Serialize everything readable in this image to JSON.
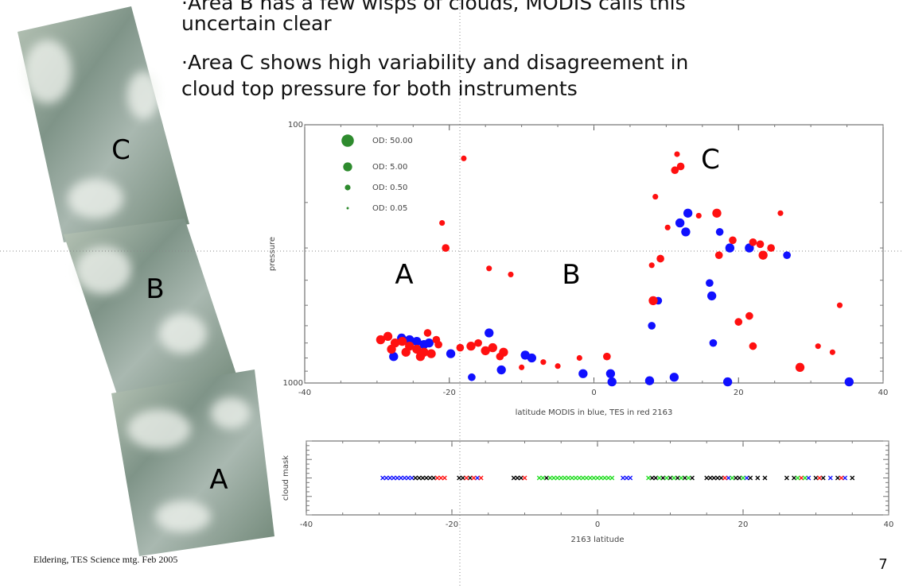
{
  "slide": {
    "bullets": [
      [
        "·Area B has a few wisps of clouds, MODIS calls this",
        "uncertain clear"
      ],
      [
        "·Area C shows high variability and disagreement in",
        "cloud top pressure for both instruments"
      ]
    ],
    "image_labels": [
      "C",
      "B",
      "A"
    ],
    "footer": "Eldering, TES Science mtg. Feb 2005",
    "page_number": "7"
  },
  "chart_data": [
    {
      "type": "scatter",
      "x_label": "latitude MODIS in blue, TES in red 2163",
      "y_label": "pressure",
      "xlim": [
        -40,
        40
      ],
      "xticks": [
        -40,
        -20,
        0,
        20,
        40
      ],
      "ylim": [
        1000,
        100
      ],
      "yticks": [
        100,
        1000
      ],
      "yscale": "log",
      "annotations": [
        "A",
        "B",
        "C"
      ],
      "legend": {
        "color": "#2e8b2e",
        "entries": [
          {
            "label": "OD:    50.00",
            "size": 50
          },
          {
            "label": "OD:    5.00",
            "size": 5
          },
          {
            "label": "OD:    0.50",
            "size": 0.5
          },
          {
            "label": "OD:    0.05",
            "size": 0.05
          }
        ]
      },
      "series": [
        {
          "color": "#1010ff",
          "x": [
            -26.6,
            -27.7,
            -22.8,
            -19.8,
            -14.5,
            -12.8,
            -9.5,
            -8.6,
            -16.9,
            -1.5,
            2.3,
            2.5,
            8.0,
            7.7,
            11.1,
            11.9,
            13.0,
            12.7,
            17.4,
            18.8,
            21.5,
            26.7,
            16.0,
            16.3,
            16.5,
            18.5,
            35.3,
            8.9,
            -24.5,
            -25.5,
            -23.5
          ],
          "values": [
            670,
            790,
            700,
            770,
            640,
            890,
            780,
            800,
            950,
            920,
            920,
            990,
            600,
            980,
            950,
            240,
            220,
            260,
            260,
            300,
            300,
            320,
            410,
            460,
            700,
            990,
            990,
            480,
            690,
            680,
            710
          ],
          "sizes": [
            5,
            5,
            5,
            5,
            5,
            5,
            5,
            5,
            2,
            5,
            5,
            5,
            2,
            5,
            5,
            5,
            5,
            5,
            2,
            5,
            5,
            2,
            2,
            5,
            2,
            5,
            5,
            2,
            5,
            5,
            5
          ]
        },
        {
          "color": "#ff1010",
          "x": [
            -28.5,
            -27.5,
            -26.5,
            -25.5,
            -24.5,
            -23.5,
            -28,
            -26,
            -24,
            -29.5,
            -22.5,
            -21.5,
            -21.8,
            -23,
            -17,
            -16,
            -14,
            -12.5,
            -15,
            -13,
            -18.5,
            -20.5,
            -10,
            -7,
            -2,
            1.8,
            -5,
            8.2,
            9.2,
            8,
            11.5,
            12,
            11.2,
            10.2,
            14.5,
            17,
            19.2,
            17.3,
            22,
            23,
            23.4,
            25.8,
            20,
            21.5,
            22,
            28.5,
            33,
            31,
            34,
            -18,
            -21,
            -14.5,
            -11.5,
            8.5,
            24.5
          ],
          "values": [
            660,
            700,
            690,
            720,
            740,
            760,
            740,
            760,
            790,
            680,
            770,
            710,
            680,
            640,
            720,
            700,
            730,
            760,
            750,
            790,
            730,
            300,
            870,
            830,
            800,
            790,
            860,
            480,
            330,
            350,
            130,
            145,
            150,
            250,
            225,
            220,
            280,
            320,
            285,
            290,
            320,
            220,
            580,
            550,
            720,
            870,
            760,
            720,
            500,
            135,
            240,
            360,
            380,
            190,
            300
          ],
          "sizes": [
            5,
            5,
            5,
            5,
            5,
            5,
            5,
            5,
            5,
            5,
            5,
            2,
            2,
            2,
            5,
            2,
            5,
            5,
            5,
            2,
            2,
            2,
            0.5,
            0.5,
            0.5,
            2,
            0.5,
            5,
            2,
            0.5,
            0.5,
            2,
            2,
            0.5,
            0.5,
            5,
            2,
            2,
            2,
            2,
            5,
            0.5,
            2,
            2,
            2,
            5,
            0.5,
            0.5,
            0.5,
            0.5,
            0.5,
            0.5,
            0.5,
            0.5,
            2
          ]
        }
      ]
    },
    {
      "type": "strip",
      "x_label": "2163  latitude",
      "y_label": "cloud mask",
      "xlim": [
        -40,
        40
      ],
      "xticks": [
        -40,
        -20,
        0,
        20,
        40
      ],
      "series": [
        {
          "color": "#1010ff",
          "x": [
            -29.5,
            -29,
            -28.5,
            -28,
            -27.5,
            -27,
            -26.5,
            -26,
            -25.5,
            -16.5,
            3.5,
            4,
            4.5,
            18,
            20.5,
            29,
            32,
            34
          ]
        },
        {
          "color": "#000000",
          "x": [
            -25,
            -24.5,
            -24,
            -23.5,
            -23,
            -22.5,
            -19,
            -18.5,
            -17.5,
            -11.5,
            -11,
            -10.5,
            -7,
            7.5,
            8,
            9,
            10,
            11,
            12,
            13,
            15,
            15.5,
            16,
            16.5,
            17,
            19,
            19.5,
            21,
            22,
            23,
            26,
            27,
            30,
            31,
            33,
            35
          ]
        },
        {
          "color": "#ff1010",
          "x": [
            -22,
            -21.5,
            -21,
            -18,
            -17,
            -16,
            -10,
            17.5,
            28,
            30.5,
            33.5
          ]
        },
        {
          "color": "#22dd22",
          "x": [
            -8,
            -7.5,
            -6.5,
            -6,
            -5.5,
            -5,
            -4.5,
            -4,
            -3.5,
            -3,
            -2.5,
            -2,
            -1.5,
            -1,
            -0.5,
            0,
            0.5,
            1,
            1.5,
            2,
            7,
            8.5,
            9.5,
            10.5,
            11.5,
            12.5,
            18.5,
            20,
            27.5,
            28.5
          ]
        }
      ]
    }
  ]
}
